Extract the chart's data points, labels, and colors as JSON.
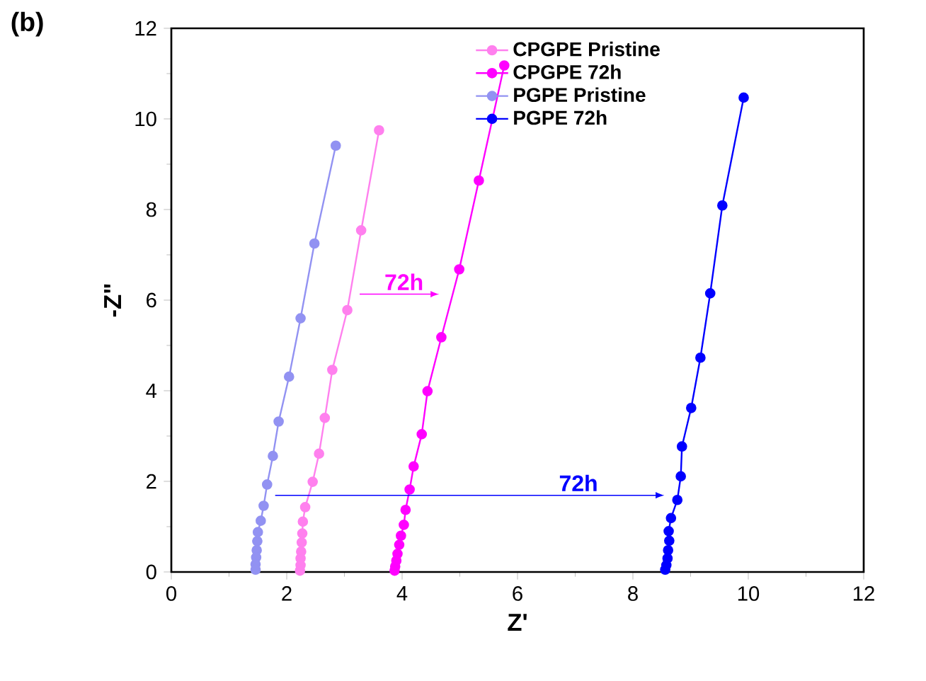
{
  "chart_data": {
    "type": "line",
    "title": "(b)",
    "xlabel": "Z'",
    "ylabel": "-Z\"",
    "xlim": [
      0,
      12
    ],
    "ylim": [
      0,
      12
    ],
    "xticks": [
      0,
      2,
      4,
      6,
      8,
      10,
      12
    ],
    "yticks": [
      0,
      2,
      4,
      6,
      8,
      10,
      12
    ],
    "legend": "top right",
    "marker": "circle",
    "line_style": "solid",
    "grid": false,
    "series": [
      {
        "name": "CPGPE Pristine",
        "color": "#ff80ee",
        "x": [
          3.6,
          3.29,
          3.05,
          2.79,
          2.66,
          2.56,
          2.45,
          2.32,
          2.28,
          2.27,
          2.26,
          2.25,
          2.24,
          2.24,
          2.23
        ],
        "values": [
          9.75,
          7.54,
          5.78,
          4.46,
          3.4,
          2.61,
          1.99,
          1.43,
          1.11,
          0.85,
          0.65,
          0.45,
          0.3,
          0.15,
          0.03
        ]
      },
      {
        "name": "CPGPE 72h",
        "color": "#ff00ff",
        "x": [
          5.77,
          5.33,
          4.99,
          4.68,
          4.44,
          4.34,
          4.2,
          4.13,
          4.06,
          4.03,
          3.98,
          3.95,
          3.92,
          3.9,
          3.88,
          3.87
        ],
        "values": [
          11.18,
          8.64,
          6.68,
          5.18,
          3.99,
          3.04,
          2.33,
          1.82,
          1.37,
          1.04,
          0.8,
          0.6,
          0.4,
          0.25,
          0.12,
          0.03
        ]
      },
      {
        "name": "PGPE Pristine",
        "color": "#9292f2",
        "x": [
          2.85,
          2.48,
          2.24,
          2.04,
          1.86,
          1.76,
          1.66,
          1.6,
          1.55,
          1.5,
          1.49,
          1.48,
          1.47,
          1.46,
          1.46
        ],
        "values": [
          9.41,
          7.25,
          5.6,
          4.31,
          3.32,
          2.56,
          1.93,
          1.46,
          1.13,
          0.88,
          0.68,
          0.48,
          0.32,
          0.17,
          0.05
        ]
      },
      {
        "name": "PGPE 72h",
        "color": "#0000ff",
        "x": [
          9.92,
          9.55,
          9.34,
          9.17,
          9.01,
          8.85,
          8.83,
          8.77,
          8.66,
          8.62,
          8.63,
          8.61,
          8.6,
          8.58,
          8.56
        ],
        "values": [
          10.47,
          8.09,
          6.15,
          4.73,
          3.62,
          2.77,
          2.11,
          1.59,
          1.19,
          0.9,
          0.69,
          0.48,
          0.3,
          0.15,
          0.05
        ]
      }
    ],
    "annotations": [
      "72h",
      "72h"
    ]
  }
}
